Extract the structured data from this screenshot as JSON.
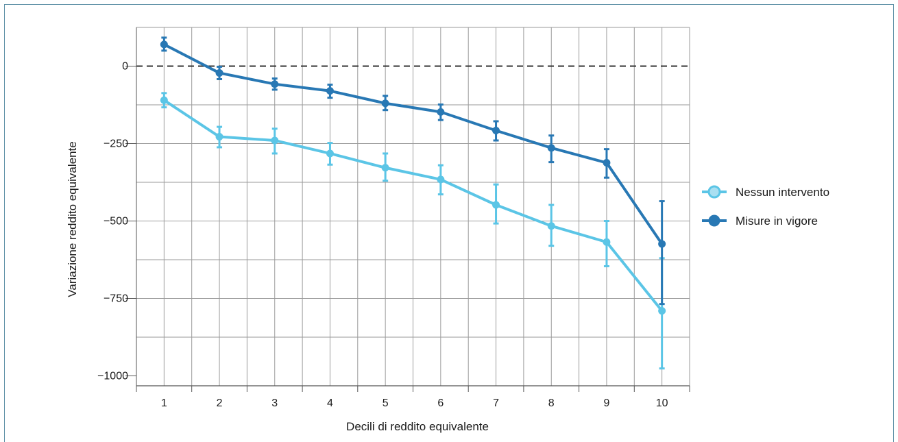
{
  "chart_data": {
    "type": "line",
    "xlabel": "Decili di reddito equivalente",
    "ylabel": "Variazione reddito equivalente",
    "categories": [
      "1",
      "2",
      "3",
      "4",
      "5",
      "6",
      "7",
      "8",
      "9",
      "10"
    ],
    "ylim": [
      -1000,
      100
    ],
    "yticks": [
      0,
      -250,
      -500,
      -750,
      -1000
    ],
    "ytick_labels": [
      "0",
      "−250",
      "−500",
      "−750",
      "−1000"
    ],
    "reference_line": 0,
    "grid": true,
    "legend_position": "right",
    "series": [
      {
        "name": "Nessun intervento",
        "color": "#5bc5e6",
        "values": [
          -110,
          -228,
          -240,
          -282,
          -328,
          -366,
          -448,
          -516,
          -568,
          -790
        ],
        "err_low": [
          -133,
          -262,
          -282,
          -318,
          -370,
          -414,
          -508,
          -580,
          -646,
          -976
        ],
        "err_high": [
          -87,
          -196,
          -202,
          -248,
          -282,
          -320,
          -382,
          -448,
          -500,
          -620
        ]
      },
      {
        "name": "Misure in vigore",
        "color": "#2878b4",
        "values": [
          70,
          -22,
          -58,
          -80,
          -120,
          -148,
          -208,
          -264,
          -312,
          -574
        ],
        "err_low": [
          50,
          -42,
          -76,
          -102,
          -142,
          -174,
          -240,
          -310,
          -360,
          -768
        ],
        "err_high": [
          92,
          -2,
          -40,
          -60,
          -96,
          -124,
          -178,
          -224,
          -268,
          -436
        ]
      }
    ]
  }
}
